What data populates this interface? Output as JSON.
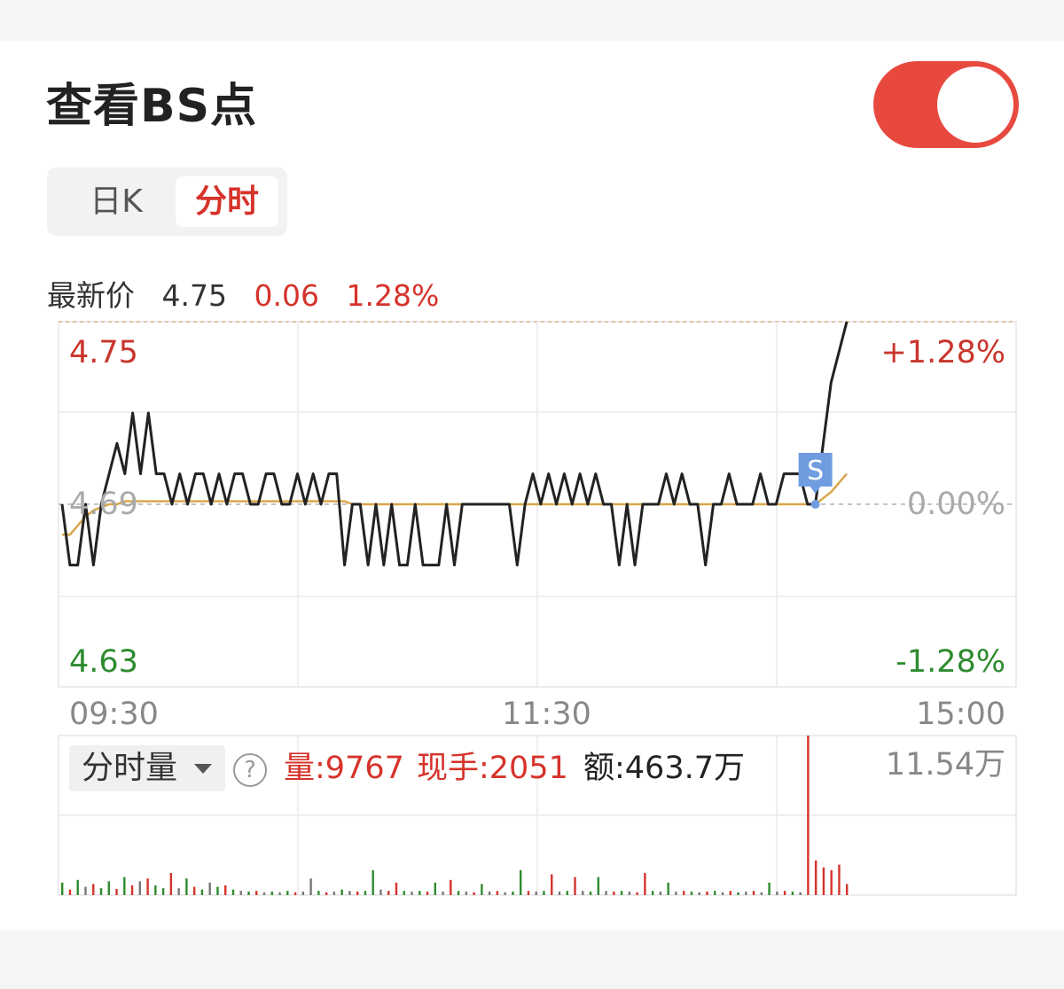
{
  "title": "查看BS点",
  "toggle": {
    "on": true,
    "color": "#e8493f"
  },
  "tabs": [
    {
      "label": "日K",
      "active": false
    },
    {
      "label": "分时",
      "active": true
    }
  ],
  "quote": {
    "label": "最新价",
    "price": "4.75",
    "change": "0.06",
    "change_pct": "1.28%"
  },
  "colors": {
    "up": "#d6332b",
    "down": "#2e8b2e",
    "price_line": "#222222",
    "avg_line": "#d9a64a",
    "marker": "#6f9de0"
  },
  "chart_data": {
    "type": "line",
    "x_ticks": [
      "09:30",
      "11:30",
      "15:00"
    ],
    "y_left_top": "4.75",
    "y_left_mid": "4.69",
    "y_left_bottom": "4.63",
    "y_right_top": "+1.28%",
    "y_right_mid": "0.00%",
    "y_right_bottom": "-1.28%",
    "ylim": [
      4.63,
      4.75
    ],
    "prev_close": 4.69,
    "price_series": [
      4.69,
      4.67,
      4.67,
      4.69,
      4.67,
      4.69,
      4.7,
      4.71,
      4.7,
      4.72,
      4.7,
      4.72,
      4.7,
      4.7,
      4.69,
      4.7,
      4.69,
      4.7,
      4.7,
      4.69,
      4.7,
      4.69,
      4.7,
      4.7,
      4.69,
      4.69,
      4.7,
      4.7,
      4.69,
      4.69,
      4.7,
      4.69,
      4.7,
      4.69,
      4.7,
      4.7,
      4.67,
      4.69,
      4.69,
      4.67,
      4.69,
      4.67,
      4.69,
      4.67,
      4.67,
      4.69,
      4.67,
      4.67,
      4.67,
      4.69,
      4.67,
      4.69,
      4.69,
      4.69,
      4.69,
      4.69,
      4.69,
      4.69,
      4.67,
      4.69,
      4.7,
      4.69,
      4.7,
      4.69,
      4.7,
      4.69,
      4.7,
      4.69,
      4.7,
      4.69,
      4.69,
      4.67,
      4.69,
      4.67,
      4.69,
      4.69,
      4.69,
      4.7,
      4.69,
      4.7,
      4.69,
      4.69,
      4.67,
      4.69,
      4.69,
      4.7,
      4.69,
      4.69,
      4.69,
      4.7,
      4.69,
      4.69,
      4.7,
      4.7,
      4.7,
      4.69,
      4.69,
      4.71,
      4.73,
      4.74,
      4.75
    ],
    "avg_series": [
      4.68,
      4.68,
      4.683,
      4.686,
      4.688,
      4.689,
      4.69,
      4.69,
      4.691,
      4.691,
      4.691,
      4.691,
      4.691,
      4.691,
      4.691,
      4.691,
      4.691,
      4.691,
      4.691,
      4.691,
      4.691,
      4.691,
      4.691,
      4.691,
      4.691,
      4.691,
      4.691,
      4.691,
      4.691,
      4.691,
      4.691,
      4.691,
      4.691,
      4.691,
      4.691,
      4.691,
      4.691,
      4.69,
      4.69,
      4.69,
      4.69,
      4.69,
      4.69,
      4.69,
      4.69,
      4.69,
      4.69,
      4.69,
      4.69,
      4.69,
      4.69,
      4.69,
      4.69,
      4.69,
      4.69,
      4.69,
      4.69,
      4.69,
      4.69,
      4.69,
      4.69,
      4.69,
      4.69,
      4.69,
      4.69,
      4.69,
      4.69,
      4.69,
      4.69,
      4.69,
      4.69,
      4.69,
      4.69,
      4.69,
      4.69,
      4.69,
      4.69,
      4.69,
      4.69,
      4.69,
      4.69,
      4.69,
      4.69,
      4.69,
      4.69,
      4.69,
      4.69,
      4.69,
      4.69,
      4.69,
      4.69,
      4.69,
      4.69,
      4.69,
      4.69,
      4.69,
      4.69,
      4.692,
      4.694,
      4.697,
      4.7
    ],
    "signals": [
      {
        "label": "S",
        "index": 96
      }
    ],
    "volume": {
      "selector_label": "分时量",
      "vol_label": "量:9767",
      "hand_label": "现手:2051",
      "amount_label": "额:463.7万",
      "max_label": "11.54万",
      "max": 115400,
      "bars": [
        {
          "v": 9000,
          "c": "down"
        },
        {
          "v": 4000,
          "c": "up"
        },
        {
          "v": 11000,
          "c": "down"
        },
        {
          "v": 6000,
          "c": "flat"
        },
        {
          "v": 8000,
          "c": "up"
        },
        {
          "v": 5000,
          "c": "down"
        },
        {
          "v": 10000,
          "c": "down"
        },
        {
          "v": 4500,
          "c": "up"
        },
        {
          "v": 13000,
          "c": "down"
        },
        {
          "v": 7000,
          "c": "up"
        },
        {
          "v": 10000,
          "c": "flat"
        },
        {
          "v": 12000,
          "c": "up"
        },
        {
          "v": 7000,
          "c": "down"
        },
        {
          "v": 5000,
          "c": "down"
        },
        {
          "v": 16000,
          "c": "up"
        },
        {
          "v": 5000,
          "c": "flat"
        },
        {
          "v": 12000,
          "c": "down"
        },
        {
          "v": 6000,
          "c": "up"
        },
        {
          "v": 4000,
          "c": "down"
        },
        {
          "v": 9000,
          "c": "flat"
        },
        {
          "v": 6000,
          "c": "down"
        },
        {
          "v": 7000,
          "c": "up"
        },
        {
          "v": 4000,
          "c": "down"
        },
        {
          "v": 3000,
          "c": "flat"
        },
        {
          "v": 2500,
          "c": "down"
        },
        {
          "v": 3000,
          "c": "up"
        },
        {
          "v": 2000,
          "c": "flat"
        },
        {
          "v": 2500,
          "c": "down"
        },
        {
          "v": 2000,
          "c": "flat"
        },
        {
          "v": 3000,
          "c": "down"
        },
        {
          "v": 2000,
          "c": "up"
        },
        {
          "v": 2500,
          "c": "flat"
        },
        {
          "v": 12000,
          "c": "flat"
        },
        {
          "v": 3000,
          "c": "down"
        },
        {
          "v": 2000,
          "c": "up"
        },
        {
          "v": 2500,
          "c": "flat"
        },
        {
          "v": 4000,
          "c": "down"
        },
        {
          "v": 3000,
          "c": "flat"
        },
        {
          "v": 2500,
          "c": "up"
        },
        {
          "v": 3000,
          "c": "down"
        },
        {
          "v": 18000,
          "c": "down"
        },
        {
          "v": 4000,
          "c": "flat"
        },
        {
          "v": 3000,
          "c": "up"
        },
        {
          "v": 9000,
          "c": "up"
        },
        {
          "v": 3000,
          "c": "down"
        },
        {
          "v": 2500,
          "c": "flat"
        },
        {
          "v": 3000,
          "c": "down"
        },
        {
          "v": 2500,
          "c": "up"
        },
        {
          "v": 9000,
          "c": "down"
        },
        {
          "v": 2500,
          "c": "flat"
        },
        {
          "v": 11000,
          "c": "up"
        },
        {
          "v": 3000,
          "c": "down"
        },
        {
          "v": 2500,
          "c": "flat"
        },
        {
          "v": 2000,
          "c": "up"
        },
        {
          "v": 8000,
          "c": "down"
        },
        {
          "v": 2500,
          "c": "flat"
        },
        {
          "v": 3000,
          "c": "up"
        },
        {
          "v": 2000,
          "c": "flat"
        },
        {
          "v": 2500,
          "c": "down"
        },
        {
          "v": 18000,
          "c": "down"
        },
        {
          "v": 3000,
          "c": "up"
        },
        {
          "v": 2500,
          "c": "flat"
        },
        {
          "v": 3000,
          "c": "down"
        },
        {
          "v": 15000,
          "c": "up"
        },
        {
          "v": 2500,
          "c": "flat"
        },
        {
          "v": 3000,
          "c": "down"
        },
        {
          "v": 13000,
          "c": "up"
        },
        {
          "v": 3000,
          "c": "flat"
        },
        {
          "v": 2500,
          "c": "down"
        },
        {
          "v": 13000,
          "c": "down"
        },
        {
          "v": 3000,
          "c": "flat"
        },
        {
          "v": 2500,
          "c": "up"
        },
        {
          "v": 3000,
          "c": "down"
        },
        {
          "v": 2500,
          "c": "flat"
        },
        {
          "v": 2000,
          "c": "up"
        },
        {
          "v": 16000,
          "c": "up"
        },
        {
          "v": 3000,
          "c": "down"
        },
        {
          "v": 2500,
          "c": "flat"
        },
        {
          "v": 9000,
          "c": "down"
        },
        {
          "v": 2500,
          "c": "flat"
        },
        {
          "v": 3000,
          "c": "up"
        },
        {
          "v": 2500,
          "c": "down"
        },
        {
          "v": 2000,
          "c": "flat"
        },
        {
          "v": 2500,
          "c": "up"
        },
        {
          "v": 3000,
          "c": "down"
        },
        {
          "v": 2000,
          "c": "flat"
        },
        {
          "v": 3000,
          "c": "up"
        },
        {
          "v": 2000,
          "c": "down"
        },
        {
          "v": 2500,
          "c": "flat"
        },
        {
          "v": 3000,
          "c": "up"
        },
        {
          "v": 2000,
          "c": "flat"
        },
        {
          "v": 9000,
          "c": "down"
        },
        {
          "v": 2500,
          "c": "flat"
        },
        {
          "v": 3000,
          "c": "up"
        },
        {
          "v": 2500,
          "c": "down"
        },
        {
          "v": 2000,
          "c": "flat"
        },
        {
          "v": 115400,
          "c": "up"
        },
        {
          "v": 25000,
          "c": "up"
        },
        {
          "v": 20000,
          "c": "up"
        },
        {
          "v": 18000,
          "c": "up"
        },
        {
          "v": 22000,
          "c": "up"
        },
        {
          "v": 8000,
          "c": "up"
        }
      ]
    }
  }
}
